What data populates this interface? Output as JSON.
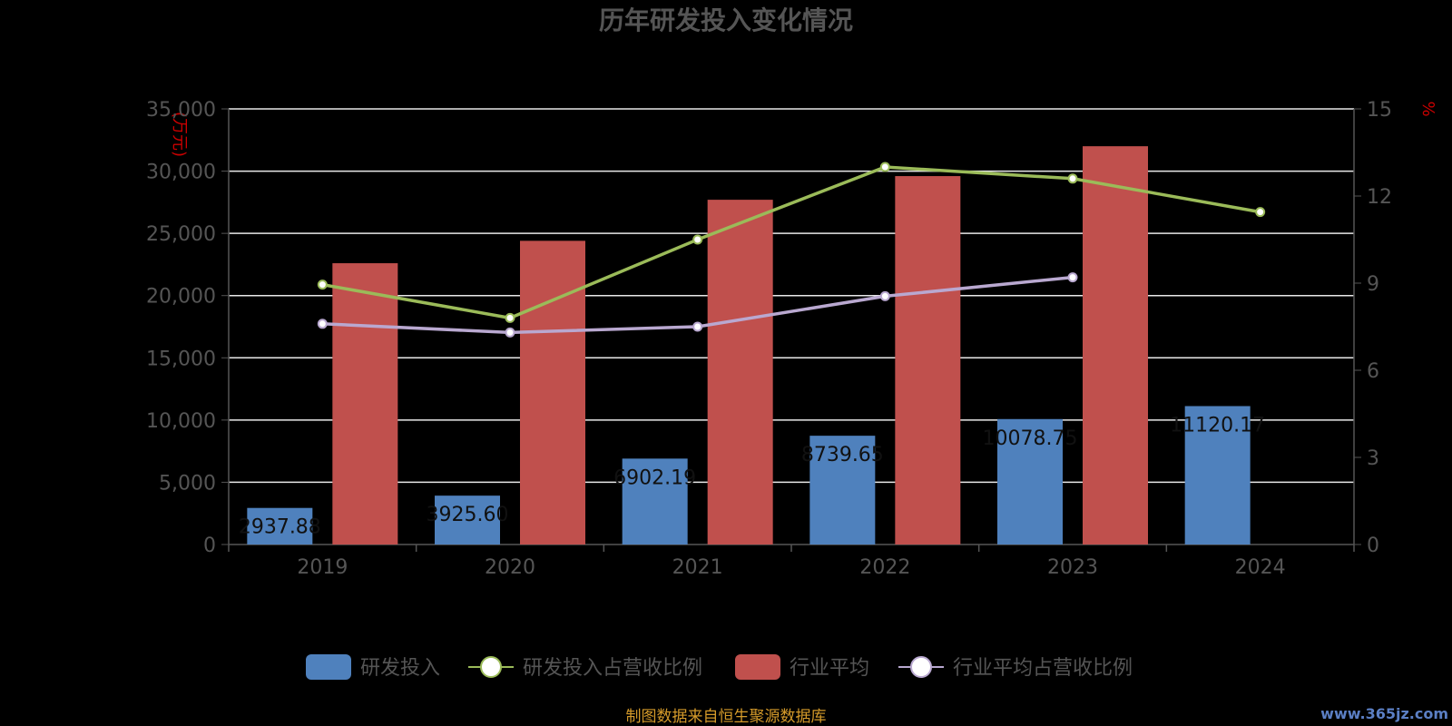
{
  "chart_data": {
    "type": "bar",
    "title": "历年研发投入变化情况",
    "categories": [
      "2019",
      "2020",
      "2021",
      "2022",
      "2023",
      "2024"
    ],
    "left_axis": {
      "unit": "(万元)",
      "ylim": [
        0,
        35000
      ],
      "ticks": [
        0,
        5000,
        10000,
        15000,
        20000,
        25000,
        30000,
        35000
      ],
      "tick_labels": [
        "0",
        "5,000",
        "10,000",
        "15,000",
        "20,000",
        "25,000",
        "30,000",
        "35,000"
      ]
    },
    "right_axis": {
      "unit": "%",
      "ylim": [
        0,
        15
      ],
      "ticks": [
        0,
        3,
        6,
        9,
        12,
        15
      ],
      "tick_labels": [
        "0",
        "3",
        "6",
        "9",
        "12",
        "15"
      ]
    },
    "series": [
      {
        "name": "研发投入",
        "type": "bar",
        "axis": "left",
        "color": "#4f81bd",
        "values": [
          2937.88,
          3925.6,
          6902.19,
          8739.65,
          10078.75,
          11120.17
        ],
        "labels": [
          "2937.88",
          "3925.60",
          "6902.19",
          "8739.65",
          "10078.75",
          "11120.17"
        ]
      },
      {
        "name": "研发投入占营收比例",
        "type": "line",
        "axis": "right",
        "color": "#9bbb59",
        "values": [
          8.95,
          7.8,
          10.5,
          13.0,
          12.6,
          11.45
        ]
      },
      {
        "name": "行业平均",
        "type": "bar",
        "axis": "left",
        "color": "#c0504d",
        "values": [
          22600,
          24400,
          27700,
          29600,
          32000,
          null
        ]
      },
      {
        "name": "行业平均占营收比例",
        "type": "line",
        "axis": "right",
        "color": "#b9a8d0",
        "values": [
          7.6,
          7.3,
          7.5,
          8.55,
          9.2,
          null
        ]
      }
    ],
    "grid": true,
    "legend_position": "bottom"
  },
  "footer": {
    "source": "制图数据来自恒生聚源数据库",
    "watermark": "www.365jz.com"
  }
}
